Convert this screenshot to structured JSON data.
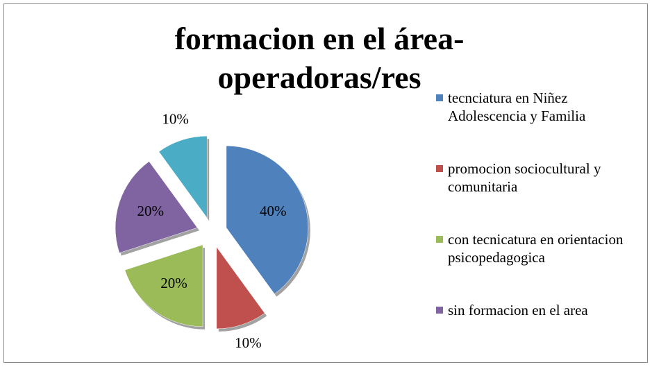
{
  "chart_data": {
    "type": "pie",
    "title": "formacion en el área-operadoras/res",
    "categories": [
      "tecnciatura en Niñez Adolescencia y Familia",
      "promocion sociocultural y comunitaria",
      "con tecnicatura en orientacion psicopedagogica",
      "sin formacion en el area",
      null
    ],
    "values": [
      40,
      10,
      20,
      20,
      10
    ],
    "value_labels": [
      "40%",
      "10%",
      "20%",
      "20%",
      "10%"
    ],
    "colors": [
      "#4f81bd",
      "#c0504d",
      "#9bbb59",
      "#8064a2",
      "#4bacc6"
    ],
    "legend": "right"
  }
}
